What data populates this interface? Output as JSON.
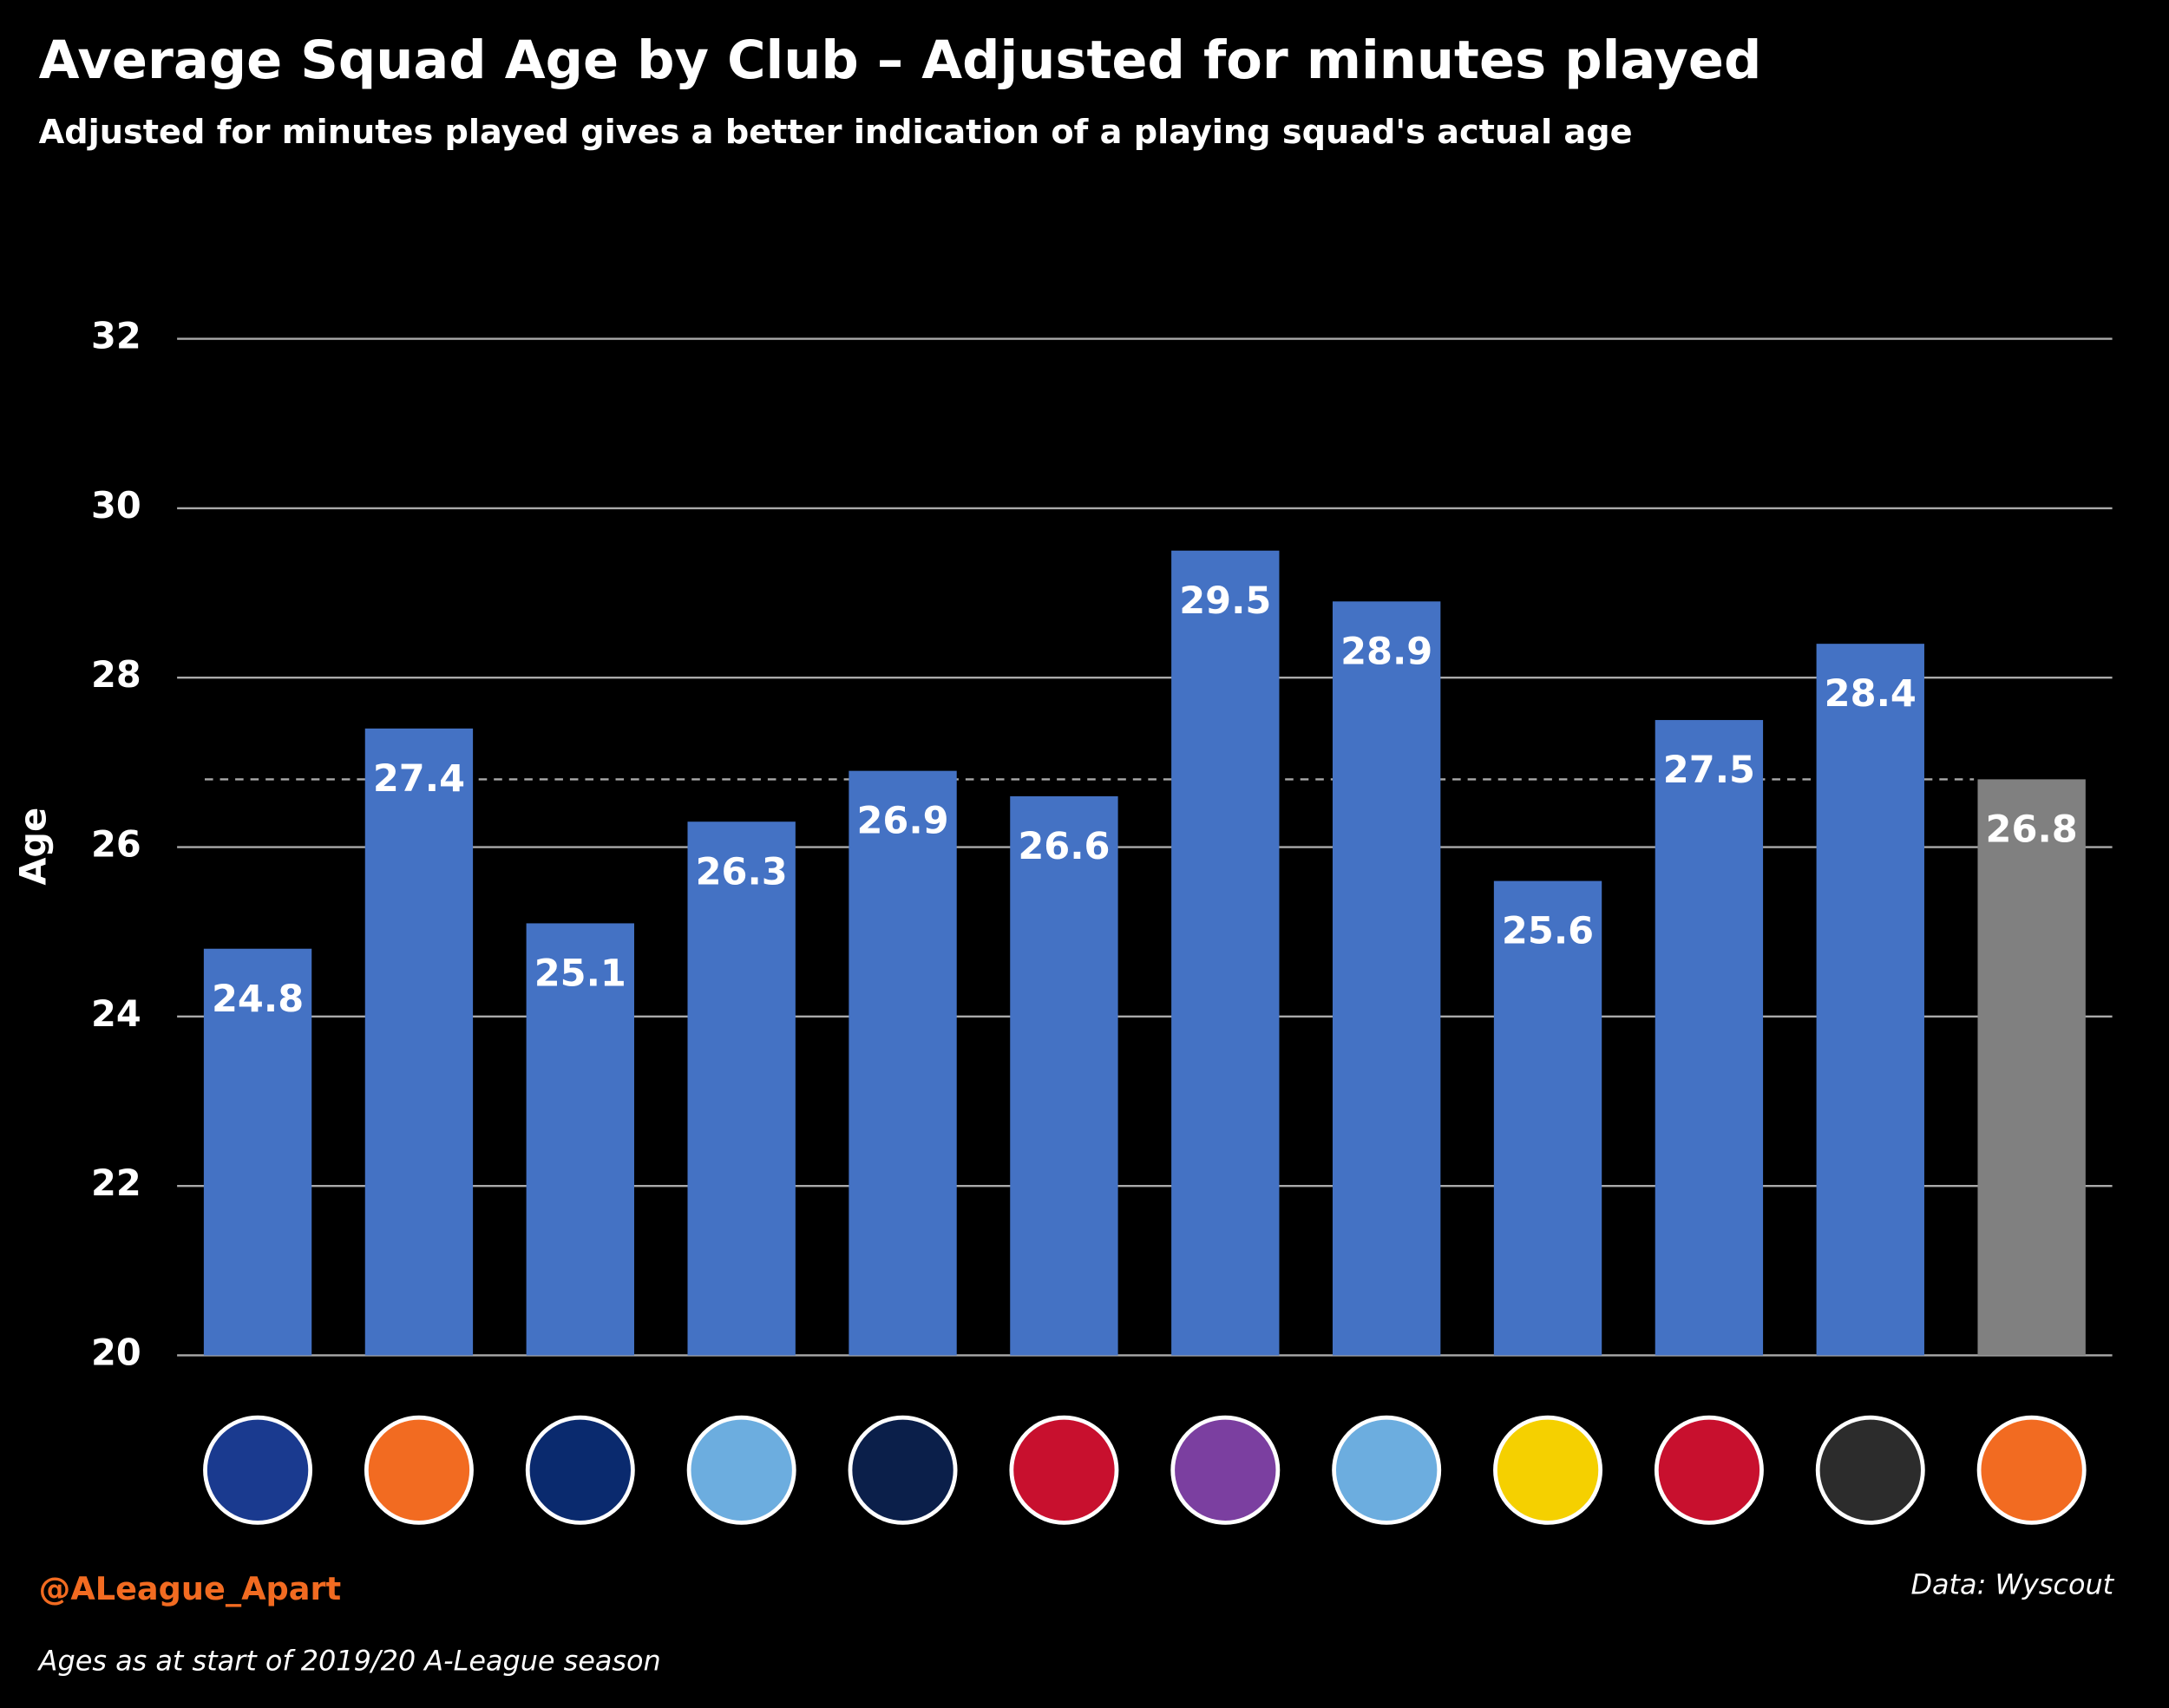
{
  "chart_data": {
    "type": "bar",
    "title": "Average Squad Age by Club – Adjusted for minutes played",
    "subtitle": "Adjusted for minutes played gives a better indication of a playing squad's actual age",
    "y_label": "Age",
    "categories": [
      null,
      null,
      null,
      null,
      null,
      null,
      null,
      null,
      null,
      null,
      null,
      null
    ],
    "values": [
      24.8,
      27.4,
      25.1,
      26.3,
      26.9,
      26.6,
      29.5,
      28.9,
      25.6,
      27.5,
      28.4,
      26.8
    ],
    "colors": [
      "#4472c4",
      "#4472c4",
      "#4472c4",
      "#4472c4",
      "#4472c4",
      "#4472c4",
      "#4472c4",
      "#4472c4",
      "#4472c4",
      "#4472c4",
      "#4472c4",
      "#808080"
    ],
    "ylim": [
      20,
      32
    ],
    "yticks": [
      20,
      22,
      24,
      26,
      28,
      30,
      32
    ],
    "grid": true,
    "source": "Data: Wyscout",
    "credit": "@ALeague_Apart",
    "note": "Ages as at start of 2019/20 A-League season"
  }
}
